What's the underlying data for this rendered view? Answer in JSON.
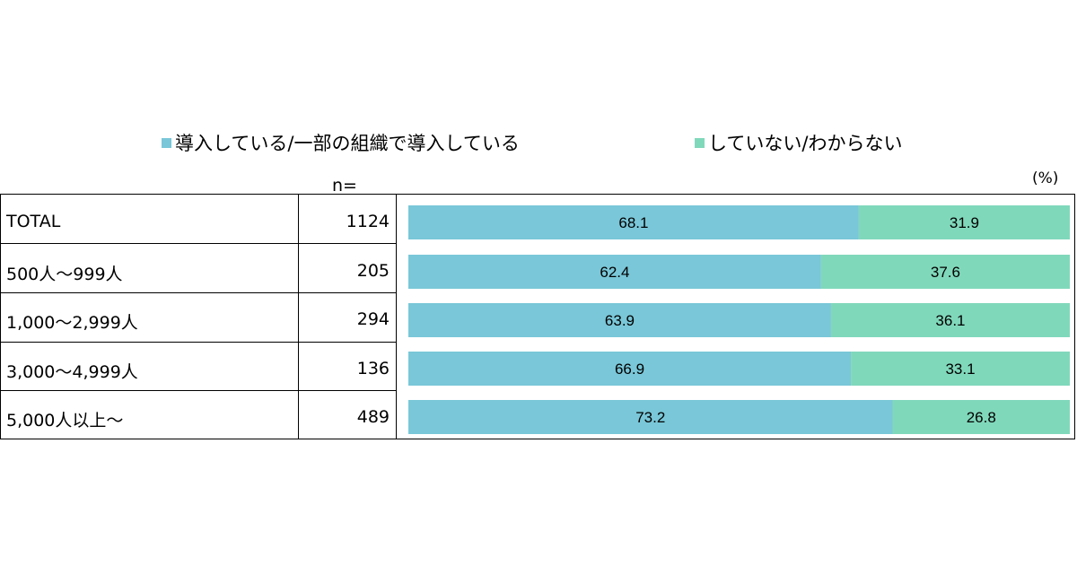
{
  "colors": {
    "series1": "#79c7d8",
    "series2": "#80d8bb"
  },
  "chart_data": {
    "type": "bar",
    "orientation": "horizontal",
    "stacked": true,
    "categories": [
      "TOTAL",
      "500人～999人",
      "1,000～2,999人",
      "3,000～4,999人",
      "5,000人以上～"
    ],
    "n_header": "n=",
    "n_values": [
      "1124",
      "205",
      "294",
      "136",
      "489"
    ],
    "unit": "(%)",
    "series": [
      {
        "name": "導入している/一部の組織で導入している",
        "values": [
          68.1,
          62.4,
          63.9,
          66.9,
          73.2
        ]
      },
      {
        "name": "していない/わからない",
        "values": [
          31.9,
          37.6,
          36.1,
          33.1,
          26.8
        ]
      }
    ],
    "xlim": [
      0,
      100
    ],
    "legend": "top",
    "grid": false
  }
}
